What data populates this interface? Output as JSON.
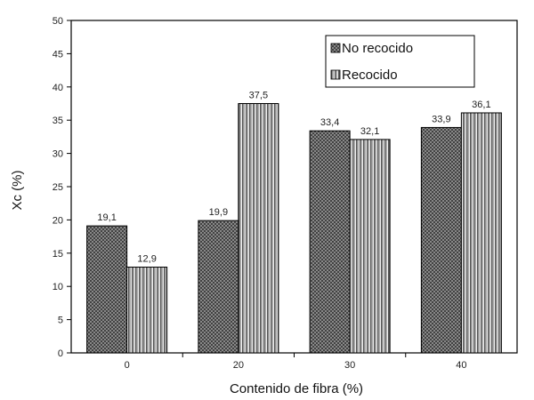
{
  "chart_data": {
    "type": "bar",
    "categories": [
      "0",
      "20",
      "30",
      "40"
    ],
    "series": [
      {
        "name": "No recocido",
        "values": [
          19.1,
          19.9,
          33.4,
          33.9
        ],
        "labels": [
          "19,1",
          "19,9",
          "33,4",
          "33,9"
        ],
        "pattern": "crosshatch-dark"
      },
      {
        "name": "Recocido",
        "values": [
          12.9,
          37.5,
          32.1,
          36.1
        ],
        "labels": [
          "12,9",
          "37,5",
          "32,1",
          "36,1"
        ],
        "pattern": "vertical-stripes-light"
      }
    ],
    "xlabel": "Contenido de fibra (%)",
    "ylabel": "Xc (%)",
    "ylim": [
      0,
      50
    ],
    "yticks": [
      "0",
      "5",
      "10",
      "15",
      "20",
      "25",
      "30",
      "35",
      "40",
      "45",
      "50"
    ],
    "grid": false,
    "legend_position": "top-right"
  },
  "colors": {
    "axis": "#000000",
    "bar_dark": "#3a3a3a",
    "bar_light": "#9a9a9a"
  }
}
